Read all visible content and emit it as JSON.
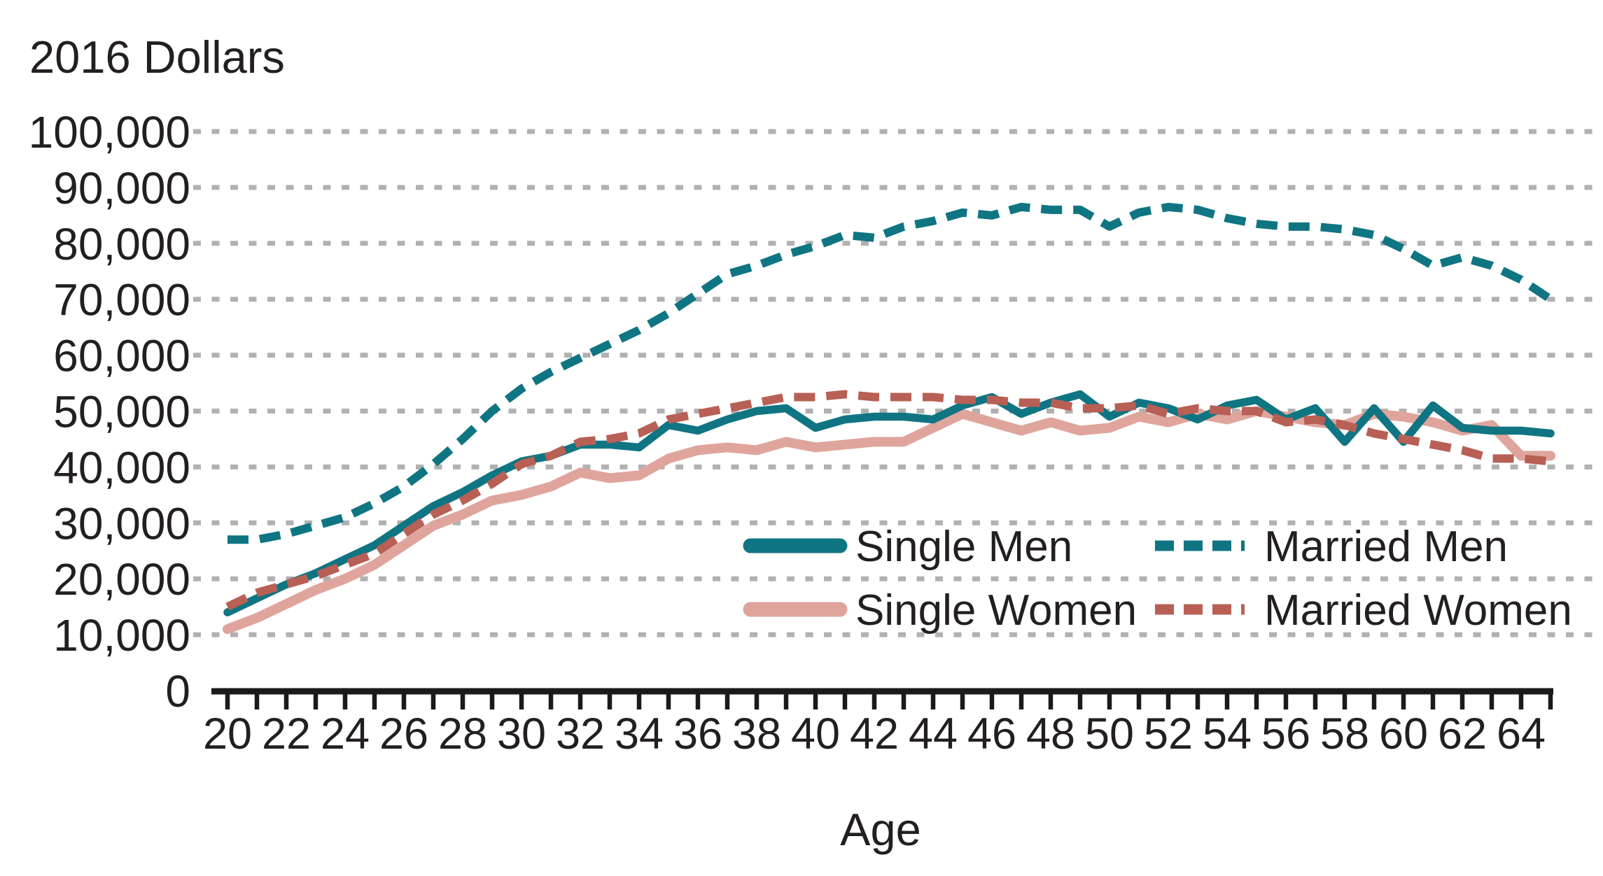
{
  "title": "2016 Dollars",
  "xlabel": "Age",
  "chart_data": {
    "type": "line",
    "x_field": "age",
    "x": [
      20,
      21,
      22,
      23,
      24,
      25,
      26,
      27,
      28,
      29,
      30,
      31,
      32,
      33,
      34,
      35,
      36,
      37,
      38,
      39,
      40,
      41,
      42,
      43,
      44,
      45,
      46,
      47,
      48,
      49,
      50,
      51,
      52,
      53,
      54,
      55,
      56,
      57,
      58,
      59,
      60,
      61,
      62,
      63,
      64,
      65
    ],
    "series": [
      {
        "name": "Single Men",
        "style": "solid",
        "color": "#107582",
        "values": [
          14000,
          16500,
          19000,
          21000,
          23500,
          26000,
          29500,
          33000,
          35500,
          38500,
          41000,
          42000,
          44000,
          44000,
          43500,
          47500,
          46500,
          48500,
          50000,
          50500,
          47000,
          48500,
          49000,
          49000,
          48500,
          51000,
          52500,
          49500,
          51500,
          53000,
          49000,
          51500,
          50500,
          48500,
          51000,
          52000,
          48500,
          50500,
          44500,
          50500,
          44500,
          51000,
          47000,
          46500,
          46500,
          46000
        ]
      },
      {
        "name": "Married Men",
        "style": "dashed",
        "color": "#107582",
        "values": [
          27000,
          27000,
          28000,
          29500,
          31000,
          33500,
          36500,
          40500,
          45000,
          50000,
          54000,
          57000,
          59500,
          62000,
          64500,
          67500,
          71000,
          74500,
          76000,
          78000,
          79500,
          81500,
          81000,
          83000,
          84000,
          85500,
          85000,
          86500,
          86000,
          86000,
          83000,
          85500,
          86500,
          86000,
          84500,
          83500,
          83000,
          83000,
          82500,
          81500,
          79000,
          76000,
          77500,
          76000,
          73500,
          70000
        ]
      },
      {
        "name": "Single Women",
        "style": "solid",
        "color": "#dfa59c",
        "values": [
          11000,
          13000,
          15500,
          18000,
          20000,
          22500,
          26000,
          29500,
          31500,
          34000,
          35000,
          36500,
          39000,
          38000,
          38500,
          41500,
          43000,
          43500,
          43000,
          44500,
          43500,
          44000,
          44500,
          44500,
          47000,
          49500,
          48000,
          46500,
          48000,
          46500,
          47000,
          49000,
          48000,
          49500,
          48500,
          50000,
          49000,
          48000,
          47500,
          49500,
          49000,
          48000,
          46500,
          47500,
          42000,
          42000
        ]
      },
      {
        "name": "Married Women",
        "style": "dashed",
        "color": "#b86055",
        "values": [
          15000,
          17500,
          19000,
          20500,
          22500,
          24500,
          28000,
          31500,
          34000,
          37000,
          40500,
          42000,
          44500,
          45000,
          46000,
          48500,
          49500,
          50500,
          51500,
          52500,
          52500,
          53000,
          52500,
          52500,
          52500,
          52000,
          52000,
          51500,
          51500,
          50500,
          50500,
          51000,
          49500,
          50500,
          50000,
          50000,
          48000,
          48500,
          47500,
          46000,
          45000,
          44000,
          43000,
          41500,
          41500,
          41000
        ]
      }
    ],
    "ylim": [
      0,
      100000
    ],
    "ytick_values": [
      0,
      10000,
      20000,
      30000,
      40000,
      50000,
      60000,
      70000,
      80000,
      90000,
      100000
    ],
    "ytick_labels": [
      "0",
      "10,000",
      "20,000",
      "30,000",
      "40,000",
      "50,000",
      "60,000",
      "70,000",
      "80,000",
      "90,000",
      "100,000"
    ],
    "xtick_values": [
      20,
      21,
      22,
      23,
      24,
      25,
      26,
      27,
      28,
      29,
      30,
      31,
      32,
      33,
      34,
      35,
      36,
      37,
      38,
      39,
      40,
      41,
      42,
      43,
      44,
      45,
      46,
      47,
      48,
      49,
      50,
      51,
      52,
      53,
      54,
      55,
      56,
      57,
      58,
      59,
      60,
      61,
      62,
      63,
      64,
      65
    ],
    "xtick_labels": [
      "20",
      "22",
      "24",
      "26",
      "28",
      "30",
      "32",
      "34",
      "36",
      "38",
      "40",
      "42",
      "44",
      "46",
      "48",
      "50",
      "52",
      "54",
      "56",
      "58",
      "60",
      "62",
      "64"
    ],
    "xlabel_step": 2,
    "grid": "horizontal-dotted",
    "grid_color": "#b1b1b1",
    "axis_color": "#1a1a1a",
    "legend_position": "inside-lower-right-2x2"
  },
  "legend": {
    "rows": 2,
    "cols": 2,
    "order": [
      0,
      1,
      2,
      3
    ]
  }
}
